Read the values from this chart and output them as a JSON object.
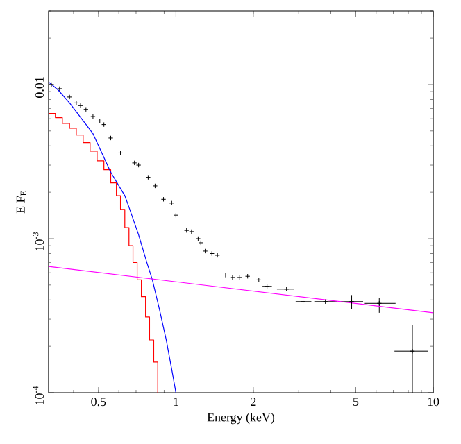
{
  "chart_data": {
    "type": "scatter",
    "xlabel": "Energy (keV)",
    "ylabel": "E F$_{E}$",
    "log": "xy",
    "xlim": [
      0.32,
      10
    ],
    "ylim": [
      0.0001,
      0.03
    ],
    "xticks": [
      0.5,
      1,
      2,
      5,
      10
    ],
    "yticks": [
      0.01,
      {
        "value": 0.001,
        "label": "10$^{-3}$"
      },
      {
        "value": 0.0001,
        "label": "10$^{-4}$"
      }
    ],
    "series": [
      {
        "color": "#000000",
        "marker": "cross",
        "x": [
          0.328,
          0.353,
          0.386,
          0.41,
          0.426,
          0.447,
          0.476,
          0.506,
          0.525,
          0.558,
          0.609,
          0.69,
          0.716,
          0.78,
          0.83,
          0.895,
          0.963,
          1.0,
          1.1,
          1.15,
          1.22,
          1.25,
          1.3,
          1.38,
          1.45,
          1.56,
          1.66,
          1.77,
          1.9,
          2.1,
          2.26,
          2.69,
          3.12,
          3.81,
          4.82,
          6.17,
          8.3
        ],
        "values": [
          0.01,
          0.0094,
          0.0083,
          0.0076,
          0.0073,
          0.0069,
          0.0062,
          0.0058,
          0.0055,
          0.0045,
          0.0036,
          0.0031,
          0.003,
          0.0025,
          0.0022,
          0.0018,
          0.0017,
          0.00142,
          0.00113,
          0.00111,
          0.001,
          0.00094,
          0.00083,
          0.0008,
          0.00078,
          0.00058,
          0.00056,
          0.00056,
          0.00057,
          0.00054,
          0.00049,
          0.00047,
          0.00039,
          0.00039,
          0.00039,
          0.00038,
          0.000186
        ],
        "xerrors": [
          null,
          null,
          null,
          null,
          null,
          null,
          null,
          null,
          null,
          null,
          null,
          null,
          null,
          null,
          null,
          null,
          null,
          null,
          null,
          null,
          null,
          null,
          null,
          null,
          null,
          null,
          null,
          null,
          null,
          null,
          [
            2.17,
            2.36
          ],
          [
            2.47,
            2.88
          ],
          [
            2.92,
            3.36
          ],
          [
            3.45,
            4.25
          ],
          [
            4.36,
            5.34
          ],
          [
            5.42,
            7.14
          ],
          [
            7.07,
            9.52
          ]
        ],
        "errors": [
          null,
          null,
          null,
          null,
          null,
          null,
          null,
          null,
          null,
          null,
          null,
          null,
          null,
          null,
          null,
          null,
          null,
          null,
          null,
          null,
          null,
          null,
          null,
          null,
          null,
          null,
          null,
          null,
          null,
          null,
          null,
          null,
          null,
          null,
          [
            0.00035,
            0.00043
          ],
          [
            0.00033,
            0.00041
          ],
          [
            0.0001,
            0.000276
          ]
        ]
      },
      {
        "type": "step",
        "color": "#ff0000",
        "x": [
          0.32,
          0.34,
          0.362,
          0.386,
          0.41,
          0.436,
          0.464,
          0.494,
          0.525,
          0.558,
          0.587,
          0.609,
          0.633,
          0.657,
          0.681,
          0.707,
          0.734,
          0.762,
          0.79,
          0.82,
          0.85
        ],
        "values": [
          0.0065,
          0.0061,
          0.0056,
          0.0052,
          0.0047,
          0.0042,
          0.0037,
          0.0032,
          0.0028,
          0.0023,
          0.0019,
          0.00155,
          0.00118,
          0.0009,
          0.0007,
          0.00054,
          0.00042,
          0.00031,
          0.00022,
          0.000158,
          0.0001
        ]
      },
      {
        "type": "line",
        "color": "#0000ff",
        "x": [
          0.32,
          0.349,
          0.386,
          0.476,
          0.558,
          0.633,
          0.657,
          0.716,
          0.771,
          0.81,
          0.862,
          0.917,
          0.963,
          1.0
        ],
        "values": [
          0.0104,
          0.0092,
          0.0076,
          0.0048,
          0.0027,
          0.0019,
          0.0016,
          0.00106,
          0.0007,
          0.00054,
          0.00035,
          0.00022,
          0.000142,
          0.0001
        ]
      },
      {
        "type": "line",
        "color": "#ff00ff",
        "x": [
          0.32,
          10
        ],
        "values": [
          0.00066,
          0.00033
        ]
      }
    ]
  }
}
